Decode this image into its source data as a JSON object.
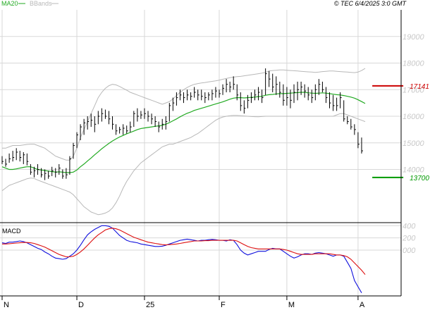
{
  "header": {
    "legend": [
      {
        "label": "MA20",
        "color": "#22aa22"
      },
      {
        "label": "BBands",
        "color": "#b8b8b8"
      }
    ],
    "copyright": "© TEC 6/4/2025 3:0 GMT"
  },
  "chart_data": [
    {
      "type": "line",
      "panel": "price",
      "ylim": [
        12000,
        20000
      ],
      "y_ticks": [
        14000,
        15000,
        16000,
        17000,
        18000,
        19000
      ],
      "y_tick_labels": [
        "14000",
        "15000",
        "16000",
        "17000",
        "18000",
        "19000"
      ],
      "x_ticks": [
        {
          "label": "N",
          "index": 0
        },
        {
          "label": "D",
          "index": 21
        },
        {
          "label": "25",
          "index": 40
        },
        {
          "label": "F",
          "index": 61
        },
        {
          "label": "M",
          "index": 80
        },
        {
          "label": "A",
          "index": 100
        }
      ],
      "n_bars": 103,
      "ohlc": [
        [
          14500,
          14200,
          14300
        ],
        [
          14400,
          14100,
          14200
        ],
        [
          14600,
          14250,
          14400
        ],
        [
          14700,
          14300,
          14450
        ],
        [
          14800,
          14350,
          14650
        ],
        [
          14700,
          14300,
          14450
        ],
        [
          14650,
          14200,
          14550
        ],
        [
          14600,
          14150,
          14300
        ],
        [
          14200,
          13800,
          13900
        ],
        [
          14100,
          13700,
          13950
        ],
        [
          14200,
          13800,
          14000
        ],
        [
          14050,
          13700,
          13800
        ],
        [
          14000,
          13600,
          13850
        ],
        [
          13950,
          13650,
          13750
        ],
        [
          14100,
          13750,
          13950
        ],
        [
          14050,
          13700,
          13900
        ],
        [
          14200,
          13800,
          14050
        ],
        [
          14000,
          13650,
          13750
        ],
        [
          14050,
          13650,
          13800
        ],
        [
          14500,
          13800,
          14400
        ],
        [
          15000,
          14400,
          14900
        ],
        [
          15400,
          14800,
          15300
        ],
        [
          15700,
          15100,
          15600
        ],
        [
          15900,
          15300,
          15750
        ],
        [
          16000,
          15500,
          15800
        ],
        [
          16100,
          15600,
          15850
        ],
        [
          16000,
          15400,
          15700
        ],
        [
          16200,
          15700,
          16000
        ],
        [
          16300,
          15800,
          16100
        ],
        [
          16250,
          15900,
          16000
        ],
        [
          16200,
          15700,
          15900
        ],
        [
          16000,
          15500,
          15700
        ],
        [
          15700,
          15300,
          15450
        ],
        [
          15600,
          15350,
          15500
        ],
        [
          15700,
          15300,
          15550
        ],
        [
          15650,
          15350,
          15450
        ],
        [
          15800,
          15400,
          15600
        ],
        [
          16200,
          15600,
          16100
        ],
        [
          16300,
          15800,
          16000
        ],
        [
          16200,
          15900,
          16050
        ],
        [
          16300,
          15900,
          16100
        ],
        [
          16200,
          15800,
          16000
        ],
        [
          16100,
          15700,
          15900
        ],
        [
          16000,
          15600,
          15800
        ],
        [
          15800,
          15400,
          15600
        ],
        [
          15900,
          15500,
          15700
        ],
        [
          16000,
          15500,
          15800
        ],
        [
          16500,
          15800,
          16400
        ],
        [
          16700,
          16200,
          16500
        ],
        [
          16900,
          16400,
          16700
        ],
        [
          17000,
          16600,
          16800
        ],
        [
          16900,
          16500,
          16700
        ],
        [
          17000,
          16600,
          16800
        ],
        [
          16900,
          16600,
          16750
        ],
        [
          17100,
          16700,
          16900
        ],
        [
          17000,
          16600,
          16800
        ],
        [
          17000,
          16600,
          16750
        ],
        [
          16900,
          16500,
          16700
        ],
        [
          16900,
          16600,
          16800
        ],
        [
          17000,
          16600,
          16850
        ],
        [
          17100,
          16700,
          16950
        ],
        [
          17000,
          16700,
          16850
        ],
        [
          17200,
          16800,
          17050
        ],
        [
          17400,
          16900,
          17200
        ],
        [
          17300,
          16900,
          17100
        ],
        [
          17500,
          17000,
          17200
        ],
        [
          17200,
          16600,
          16800
        ],
        [
          16900,
          16200,
          16400
        ],
        [
          16600,
          16100,
          16300
        ],
        [
          16800,
          16300,
          16600
        ],
        [
          16900,
          16500,
          16700
        ],
        [
          17000,
          16600,
          16800
        ],
        [
          17100,
          16600,
          16900
        ],
        [
          17000,
          16500,
          16700
        ],
        [
          17800,
          16800,
          17600
        ],
        [
          17700,
          17100,
          17400
        ],
        [
          17600,
          16900,
          17100
        ],
        [
          17500,
          16800,
          17200
        ],
        [
          17300,
          16700,
          16900
        ],
        [
          17200,
          16400,
          16600
        ],
        [
          17100,
          16400,
          16700
        ],
        [
          17000,
          16300,
          16600
        ],
        [
          17200,
          16500,
          16900
        ],
        [
          17300,
          16600,
          17000
        ],
        [
          17300,
          16800,
          17100
        ],
        [
          17200,
          16700,
          16950
        ],
        [
          17100,
          16600,
          16800
        ],
        [
          17000,
          16500,
          16700
        ],
        [
          17200,
          16600,
          17000
        ],
        [
          17400,
          16800,
          17200
        ],
        [
          17300,
          16900,
          17000
        ],
        [
          17100,
          16500,
          16700
        ],
        [
          16900,
          16300,
          16500
        ],
        [
          16800,
          16200,
          16400
        ],
        [
          16700,
          16200,
          16400
        ],
        [
          16900,
          16300,
          16700
        ],
        [
          16600,
          15800,
          15900
        ],
        [
          16000,
          15700,
          15800
        ],
        [
          15900,
          15500,
          15600
        ],
        [
          15700,
          15300,
          15500
        ],
        [
          15400,
          14800,
          14950
        ],
        [
          15200,
          14600,
          14700
        ]
      ],
      "ma20": [
        14100,
        14050,
        14000,
        14000,
        14020,
        14050,
        14080,
        14100,
        14100,
        14050,
        14000,
        13980,
        13960,
        13940,
        13920,
        13900,
        13910,
        13900,
        13880,
        13880,
        13900,
        13980,
        14100,
        14200,
        14320,
        14430,
        14550,
        14660,
        14780,
        14880,
        14980,
        15070,
        15150,
        15220,
        15280,
        15340,
        15390,
        15440,
        15500,
        15540,
        15560,
        15580,
        15600,
        15620,
        15640,
        15660,
        15700,
        15760,
        15830,
        15900,
        15980,
        16050,
        16110,
        16160,
        16220,
        16260,
        16300,
        16340,
        16380,
        16420,
        16460,
        16500,
        16540,
        16590,
        16640,
        16680,
        16700,
        16700,
        16690,
        16700,
        16710,
        16720,
        16740,
        16750,
        16790,
        16810,
        16820,
        16840,
        16850,
        16850,
        16860,
        16870,
        16880,
        16890,
        16900,
        16900,
        16880,
        16870,
        16860,
        16870,
        16880,
        16870,
        16850,
        16830,
        16810,
        16800,
        16780,
        16750,
        16720,
        16680,
        16620,
        16550,
        16480
      ],
      "bb_upper": [
        14800,
        14800,
        14850,
        14900,
        14900,
        14900,
        14920,
        14940,
        14950,
        14950,
        14900,
        14850,
        14800,
        14700,
        14600,
        14500,
        14450,
        14400,
        14350,
        14350,
        14500,
        14800,
        15200,
        15500,
        15800,
        16100,
        16400,
        16700,
        16900,
        17050,
        17150,
        17200,
        17180,
        17120,
        17050,
        16980,
        16900,
        16850,
        16800,
        16750,
        16700,
        16650,
        16600,
        16550,
        16500,
        16450,
        16500,
        16550,
        16650,
        16780,
        16900,
        17000,
        17080,
        17150,
        17200,
        17230,
        17250,
        17270,
        17290,
        17310,
        17330,
        17360,
        17390,
        17420,
        17450,
        17470,
        17490,
        17500,
        17520,
        17540,
        17560,
        17580,
        17600,
        17620,
        17650,
        17700,
        17720,
        17730,
        17740,
        17740,
        17730,
        17720,
        17710,
        17700,
        17690,
        17680,
        17670,
        17660,
        17650,
        17660,
        17680,
        17690,
        17700,
        17700,
        17690,
        17680,
        17670,
        17660,
        17650,
        17640,
        17660,
        17720,
        17800
      ],
      "bb_lower": [
        13200,
        13300,
        13400,
        13450,
        13500,
        13550,
        13600,
        13650,
        13680,
        13660,
        13600,
        13550,
        13500,
        13450,
        13400,
        13350,
        13300,
        13250,
        13200,
        13150,
        13050,
        12900,
        12750,
        12600,
        12500,
        12400,
        12350,
        12300,
        12320,
        12360,
        12430,
        12550,
        12750,
        13000,
        13300,
        13550,
        13750,
        13950,
        14100,
        14250,
        14350,
        14450,
        14550,
        14650,
        14750,
        14850,
        14900,
        14950,
        14950,
        15000,
        15050,
        15100,
        15150,
        15200,
        15280,
        15350,
        15450,
        15550,
        15650,
        15750,
        15850,
        15920,
        15970,
        16000,
        16020,
        16030,
        16030,
        16020,
        16010,
        16000,
        15990,
        15985,
        15980,
        15990,
        16000,
        16000,
        16000,
        16000,
        16000,
        16000,
        16000,
        16000,
        16000,
        16000,
        16000,
        16000,
        16000,
        16000,
        16000,
        16000,
        16000,
        16000,
        16000,
        16000,
        16050,
        16100,
        16100,
        16050,
        16000,
        15950,
        15900,
        15850,
        15800
      ],
      "levels": [
        {
          "value": 17141,
          "label": "17141",
          "color": "#cc0000",
          "from_index": 104
        },
        {
          "value": 13700,
          "label": "13700",
          "color": "#009900",
          "from_index": 104
        }
      ]
    },
    {
      "type": "line",
      "panel": "macd",
      "title": "MACD",
      "ylim": [
        -750,
        450
      ],
      "y_ticks": [
        0,
        200,
        400
      ],
      "y_tick_labels": [
        "000",
        "200",
        "400"
      ],
      "series": [
        {
          "color": "#1010dd",
          "values": [
            120,
            110,
            130,
            130,
            140,
            150,
            140,
            120,
            90,
            60,
            30,
            10,
            -30,
            -60,
            -100,
            -130,
            -140,
            -150,
            -140,
            -100,
            -60,
            0,
            80,
            170,
            250,
            300,
            340,
            370,
            400,
            400,
            390,
            360,
            300,
            240,
            200,
            160,
            140,
            130,
            120,
            100,
            90,
            80,
            70,
            60,
            60,
            65,
            80,
            100,
            120,
            140,
            160,
            170,
            180,
            170,
            160,
            150,
            160,
            160,
            170,
            175,
            170,
            160,
            160,
            150,
            170,
            160,
            90,
            0,
            -50,
            -80,
            -60,
            -40,
            -20,
            -20,
            -20,
            10,
            30,
            20,
            20,
            -20,
            -60,
            -100,
            -130,
            -110,
            -80,
            -60,
            -60,
            -70,
            -50,
            -40,
            -50,
            -60,
            -80,
            -100,
            -80,
            -80,
            -100,
            -200,
            -300,
            -500,
            -600,
            -700
          ]
        },
        {
          "color": "#dd1010",
          "values": [
            100,
            100,
            105,
            110,
            115,
            120,
            125,
            125,
            120,
            110,
            90,
            70,
            50,
            20,
            -10,
            -40,
            -70,
            -90,
            -110,
            -110,
            -100,
            -70,
            -30,
            20,
            80,
            140,
            200,
            250,
            290,
            330,
            350,
            360,
            350,
            330,
            300,
            270,
            240,
            210,
            190,
            170,
            150,
            130,
            120,
            110,
            100,
            90,
            85,
            90,
            95,
            100,
            110,
            120,
            130,
            140,
            150,
            150,
            150,
            155,
            155,
            160,
            160,
            160,
            160,
            160,
            160,
            160,
            150,
            120,
            90,
            60,
            40,
            30,
            20,
            20,
            20,
            20,
            20,
            20,
            20,
            10,
            0,
            -20,
            -40,
            -60,
            -70,
            -70,
            -70,
            -70,
            -60,
            -60,
            -60,
            -60,
            -60,
            -70,
            -80,
            -80,
            -90,
            -110,
            -150,
            -210,
            -270,
            -330,
            -400
          ]
        }
      ]
    }
  ]
}
